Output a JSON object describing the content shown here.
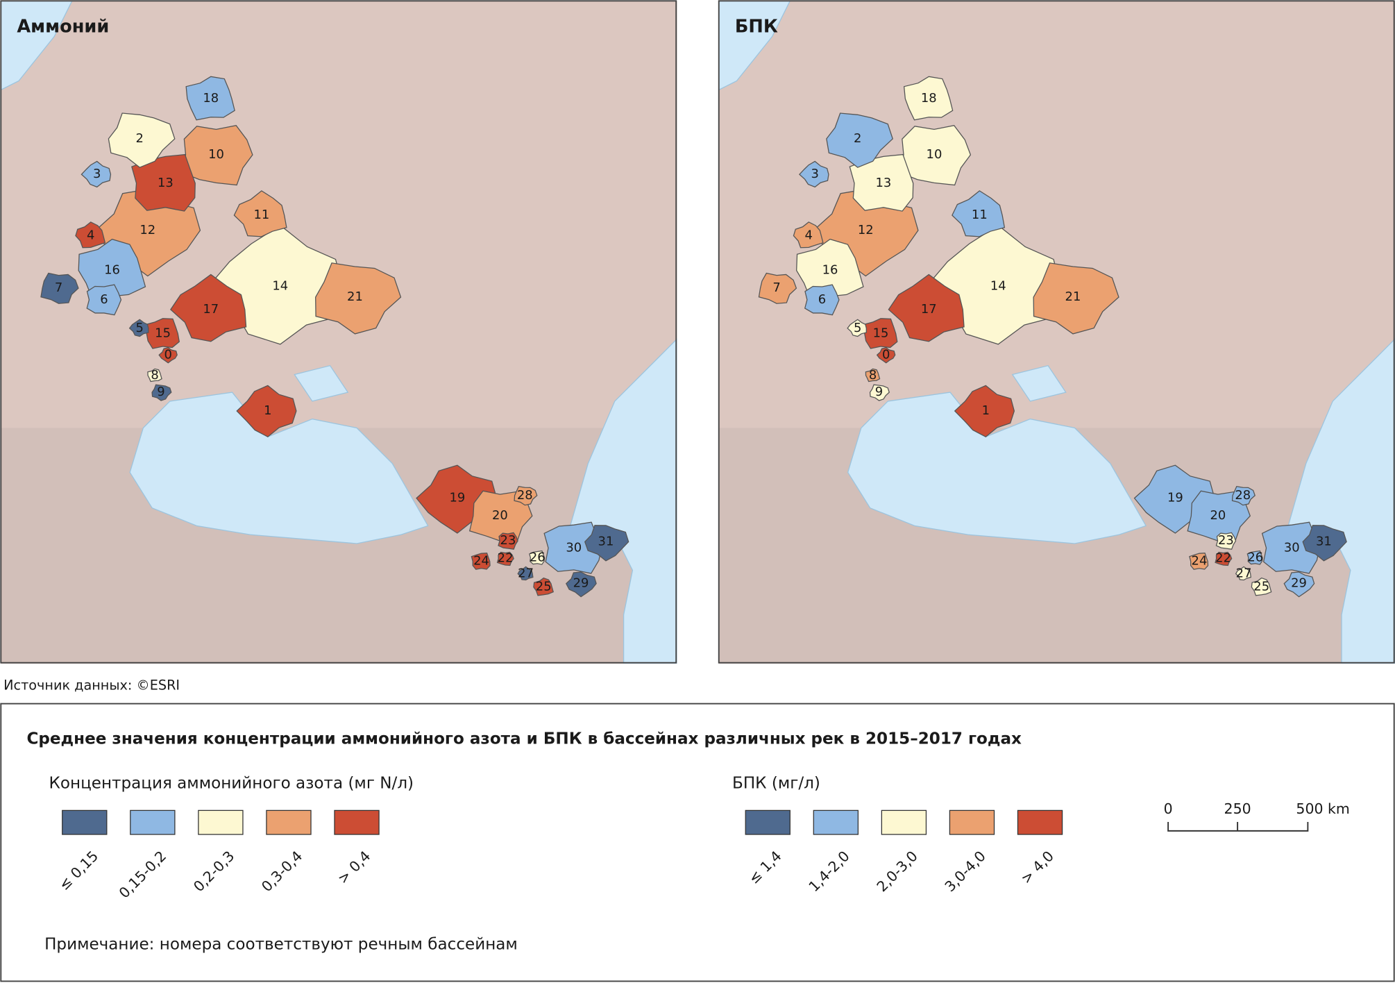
{
  "maps": [
    {
      "title": "Аммоний",
      "basins": [
        {
          "label": "14",
          "color": "#fdf8d2"
        },
        {
          "label": "12",
          "color": "#eba170"
        },
        {
          "label": "21",
          "color": "#eba170"
        },
        {
          "label": "10",
          "color": "#eba170"
        },
        {
          "label": "13",
          "color": "#cc4d34"
        },
        {
          "label": "16",
          "color": "#8fb8e3"
        },
        {
          "label": "17",
          "color": "#cc4d34"
        },
        {
          "label": "19",
          "color": "#cc4d34"
        },
        {
          "label": "2",
          "color": "#fdf8d2"
        },
        {
          "label": "20",
          "color": "#eba170"
        },
        {
          "label": "30",
          "color": "#8fb8e3"
        },
        {
          "label": "18",
          "color": "#8fb8e3"
        },
        {
          "label": "11",
          "color": "#eba170"
        },
        {
          "label": "1",
          "color": "#cc4d34"
        },
        {
          "label": "31",
          "color": "#4f6a8f"
        },
        {
          "label": "7",
          "color": "#4f6a8f"
        },
        {
          "label": "6",
          "color": "#8fb8e3"
        },
        {
          "label": "15",
          "color": "#cc4d34"
        },
        {
          "label": "4",
          "color": "#cc4d34"
        },
        {
          "label": "3",
          "color": "#8fb8e3"
        },
        {
          "label": "29",
          "color": "#4f6a8f"
        },
        {
          "label": "28",
          "color": "#eba170"
        },
        {
          "label": "23",
          "color": "#cc4d34"
        },
        {
          "label": "24",
          "color": "#cc4d34"
        },
        {
          "label": "25",
          "color": "#cc4d34"
        },
        {
          "label": "5",
          "color": "#4f6a8f"
        },
        {
          "label": "0",
          "color": "#cc4d34"
        },
        {
          "label": "9",
          "color": "#4f6a8f"
        },
        {
          "label": "22",
          "color": "#cc4d34"
        },
        {
          "label": "26",
          "color": "#fdf8d2"
        },
        {
          "label": "8",
          "color": "#fdf8d2"
        },
        {
          "label": "27",
          "color": "#4f6a8f"
        }
      ]
    },
    {
      "title": "БПК",
      "basins": [
        {
          "label": "14",
          "color": "#fdf8d2"
        },
        {
          "label": "12",
          "color": "#eba170"
        },
        {
          "label": "21",
          "color": "#eba170"
        },
        {
          "label": "10",
          "color": "#fdf8d2"
        },
        {
          "label": "13",
          "color": "#fdf8d2"
        },
        {
          "label": "16",
          "color": "#fdf8d2"
        },
        {
          "label": "17",
          "color": "#cc4d34"
        },
        {
          "label": "19",
          "color": "#8fb8e3"
        },
        {
          "label": "2",
          "color": "#8fb8e3"
        },
        {
          "label": "20",
          "color": "#8fb8e3"
        },
        {
          "label": "30",
          "color": "#8fb8e3"
        },
        {
          "label": "18",
          "color": "#fdf8d2"
        },
        {
          "label": "11",
          "color": "#8fb8e3"
        },
        {
          "label": "1",
          "color": "#cc4d34"
        },
        {
          "label": "31",
          "color": "#4f6a8f"
        },
        {
          "label": "7",
          "color": "#eba170"
        },
        {
          "label": "6",
          "color": "#8fb8e3"
        },
        {
          "label": "15",
          "color": "#cc4d34"
        },
        {
          "label": "4",
          "color": "#eba170"
        },
        {
          "label": "3",
          "color": "#8fb8e3"
        },
        {
          "label": "29",
          "color": "#8fb8e3"
        },
        {
          "label": "28",
          "color": "#8fb8e3"
        },
        {
          "label": "23",
          "color": "#fdf8d2"
        },
        {
          "label": "24",
          "color": "#eba170"
        },
        {
          "label": "25",
          "color": "#fdf8d2"
        },
        {
          "label": "5",
          "color": "#fdf8d2"
        },
        {
          "label": "0",
          "color": "#cc4d34"
        },
        {
          "label": "9",
          "color": "#fdf8d2"
        },
        {
          "label": "22",
          "color": "#cc4d34"
        },
        {
          "label": "26",
          "color": "#8fb8e3"
        },
        {
          "label": "8",
          "color": "#eba170"
        },
        {
          "label": "27",
          "color": "#fdf8d2"
        }
      ]
    }
  ],
  "source": "Источник данных:  ©ESRI",
  "legend": {
    "title": "Среднее значения концентрации аммонийного азота и БПК в бассейнах различных рек в 2015–2017 годах",
    "groups": [
      {
        "title": "Концентрация аммонийного азота (мг N/л)",
        "classes": [
          {
            "label": "≤ 0,15",
            "color": "#4f6a8f"
          },
          {
            "label": "0,15-0,2",
            "color": "#8fb8e3"
          },
          {
            "label": "0,2-0,3",
            "color": "#fdf8d2"
          },
          {
            "label": "0,3-0,4",
            "color": "#eba170"
          },
          {
            "label": "> 0,4",
            "color": "#cc4d34"
          }
        ]
      },
      {
        "title": "БПК (мг/л)",
        "classes": [
          {
            "label": "≤ 1,4",
            "color": "#4f6a8f"
          },
          {
            "label": "1,4-2,0",
            "color": "#8fb8e3"
          },
          {
            "label": "2,0-3,0",
            "color": "#fdf8d2"
          },
          {
            "label": "3,0-4,0",
            "color": "#eba170"
          },
          {
            "label": "> 4,0",
            "color": "#cc4d34"
          }
        ]
      }
    ],
    "scale_labels": [
      "0",
      "250",
      "500 km"
    ],
    "note": "Примечание: номера соответствуют речным бассейнам"
  }
}
